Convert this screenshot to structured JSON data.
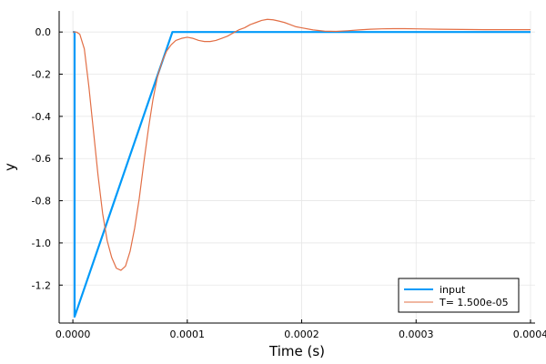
{
  "chart_data": {
    "type": "line",
    "xlabel": "Time (s)",
    "ylabel": "y",
    "xlim": [
      -1.2e-05,
      0.000404
    ],
    "ylim": [
      -1.38,
      0.1
    ],
    "x_ticks": [
      0,
      0.0001,
      0.0002,
      0.0003,
      0.0004
    ],
    "x_tick_labels": [
      "0.0000",
      "0.0001",
      "0.0002",
      "0.0003",
      "0.0004"
    ],
    "y_ticks": [
      0,
      -0.2,
      -0.4,
      -0.6,
      -0.8,
      -1.0,
      -1.2
    ],
    "y_tick_labels": [
      "0.0",
      "-0.2",
      "-0.4",
      "-0.6",
      "-0.8",
      "-1.0",
      "-1.2"
    ],
    "grid": true,
    "legend_position": "bottom-right",
    "series": [
      {
        "name": "input",
        "color": "#009af9",
        "x": [
          0,
          1.5e-06,
          1.5e-06,
          8.7e-05,
          0.0004
        ],
        "y": [
          0,
          0,
          -1.35,
          0,
          0
        ]
      },
      {
        "name": "T= 1.500e-05",
        "color": "#e26f46",
        "x": [
          0,
          3e-06,
          6e-06,
          1e-05,
          1.4e-05,
          1.8e-05,
          2.2e-05,
          2.6e-05,
          3e-05,
          3.4e-05,
          3.8e-05,
          4.2e-05,
          4.6e-05,
          5e-05,
          5.4e-05,
          5.8e-05,
          6.2e-05,
          6.6e-05,
          7e-05,
          7.4e-05,
          7.8e-05,
          8.2e-05,
          8.6e-05,
          9e-05,
          9.5e-05,
          0.0001,
          0.000105,
          0.00011,
          0.000115,
          0.00012,
          0.000125,
          0.00013,
          0.000135,
          0.00014,
          0.000145,
          0.00015,
          0.000155,
          0.00016,
          0.000165,
          0.00017,
          0.000175,
          0.00018,
          0.000185,
          0.00019,
          0.000195,
          0.0002,
          0.00021,
          0.00022,
          0.00023,
          0.00024,
          0.00025,
          0.00026,
          0.00027,
          0.00028,
          0.00029,
          0.0003,
          0.00032,
          0.00034,
          0.00036,
          0.00038,
          0.0004
        ],
        "y": [
          0,
          0,
          -0.01,
          -0.08,
          -0.26,
          -0.47,
          -0.68,
          -0.86,
          -0.99,
          -1.07,
          -1.12,
          -1.13,
          -1.11,
          -1.04,
          -0.93,
          -0.79,
          -0.62,
          -0.46,
          -0.32,
          -0.21,
          -0.14,
          -0.09,
          -0.06,
          -0.04,
          -0.03,
          -0.025,
          -0.03,
          -0.04,
          -0.045,
          -0.045,
          -0.04,
          -0.03,
          -0.02,
          -0.005,
          0.01,
          0.02,
          0.035,
          0.045,
          0.055,
          0.06,
          0.058,
          0.052,
          0.045,
          0.035,
          0.025,
          0.02,
          0.01,
          0.004,
          0.003,
          0.006,
          0.01,
          0.013,
          0.015,
          0.016,
          0.016,
          0.015,
          0.013,
          0.012,
          0.011,
          0.011,
          0.011
        ]
      }
    ]
  }
}
